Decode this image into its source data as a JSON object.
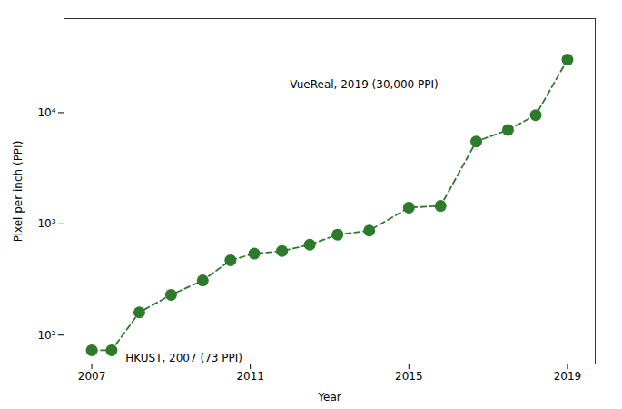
{
  "chart_data": {
    "type": "line",
    "x": [
      2007,
      2007.5,
      2008.2,
      2009.0,
      2009.8,
      2010.5,
      2011.1,
      2011.8,
      2012.5,
      2013.2,
      2014.0,
      2015.0,
      2015.8,
      2016.7,
      2017.5,
      2018.2,
      2019.0
    ],
    "values": [
      73,
      73,
      160,
      230,
      310,
      470,
      540,
      570,
      650,
      800,
      870,
      1400,
      1450,
      5500,
      7000,
      9500,
      30000
    ],
    "color": "#2d7a2d",
    "marker": "circle",
    "line_style": "dashed",
    "xlabel": "Year",
    "ylabel": "Pixel per inch (PPI)",
    "xlim": [
      2006.3,
      2019.7
    ],
    "xticks": [
      2007,
      2011,
      2015,
      2019
    ],
    "log": "y",
    "ylim": [
      55,
      70000
    ],
    "yticks": [
      {
        "value": 100,
        "label": "10²"
      },
      {
        "value": 1000,
        "label": "10³"
      },
      {
        "value": 10000,
        "label": "10⁴"
      }
    ],
    "grid": false,
    "annotations": [
      {
        "text": "HKUST, 2007 (73 PPI)",
        "x": 2007.85,
        "y": 68
      },
      {
        "text": "VueReal, 2019 (30,000 PPI)",
        "x": 2012.0,
        "y": 18000
      }
    ]
  }
}
